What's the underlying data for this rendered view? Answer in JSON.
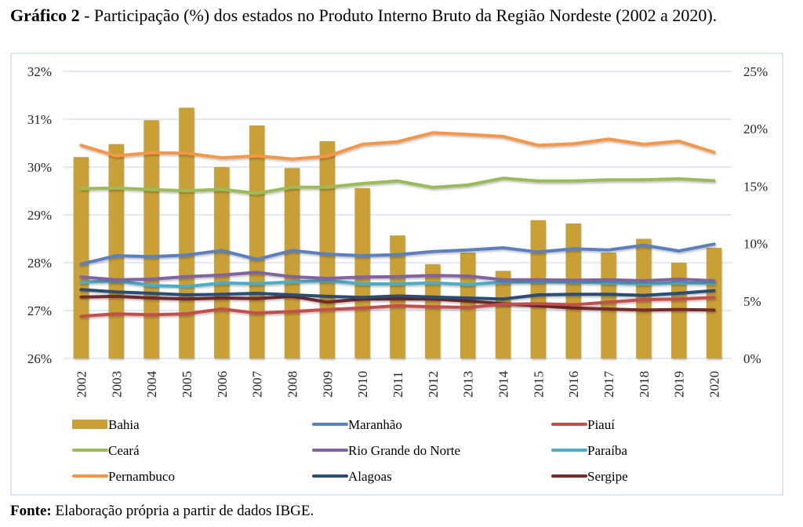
{
  "title": {
    "label": "Gráfico  2",
    "text": " - Participação (%) dos estados no Produto Interno Bruto da Região Nordeste (2002 a 2020)."
  },
  "source": {
    "label": "Fonte:",
    "text": " Elaboração própria a partir de dados IBGE."
  },
  "chart_data": {
    "type": "bar",
    "title": "Participação (%) dos estados no Produto Interno Bruto da Região Nordeste (2002 a 2020)",
    "xlabel": "",
    "ylabel": "",
    "categories": [
      "2002",
      "2003",
      "2004",
      "2005",
      "2006",
      "2007",
      "2008",
      "2009",
      "2010",
      "2011",
      "2012",
      "2013",
      "2014",
      "2015",
      "2016",
      "2017",
      "2018",
      "2019",
      "2020"
    ],
    "left_axis": {
      "ylim": [
        26,
        32
      ],
      "ticks": [
        "26%",
        "27%",
        "28%",
        "29%",
        "30%",
        "31%",
        "32%"
      ]
    },
    "right_axis": {
      "ylim": [
        0,
        25
      ],
      "ticks": [
        "0%",
        "5%",
        "10%",
        "15%",
        "20%",
        "25%"
      ]
    },
    "grid": true,
    "legend_position": "bottom",
    "series": [
      {
        "name": "Bahia",
        "kind": "bar",
        "axis": "left",
        "color": "#c9a035",
        "values": [
          30.21,
          30.48,
          30.98,
          31.24,
          30.0,
          30.87,
          29.98,
          30.54,
          29.56,
          28.57,
          27.97,
          28.21,
          27.83,
          28.89,
          28.82,
          28.21,
          28.5,
          28.0,
          28.31
        ]
      },
      {
        "name": "Maranhão",
        "kind": "line",
        "axis": "right",
        "color": "#5b80bd",
        "values": [
          8.22,
          8.95,
          8.86,
          9.0,
          9.4,
          8.63,
          9.4,
          9.08,
          8.95,
          9.04,
          9.31,
          9.45,
          9.63,
          9.27,
          9.54,
          9.45,
          9.86,
          9.36,
          9.95
        ]
      },
      {
        "name": "Piauí",
        "kind": "line",
        "axis": "right",
        "color": "#c0504d",
        "values": [
          3.67,
          3.89,
          3.8,
          3.89,
          4.3,
          3.94,
          4.08,
          4.26,
          4.39,
          4.58,
          4.49,
          4.44,
          4.71,
          4.76,
          4.67,
          4.9,
          5.12,
          5.17,
          5.31
        ]
      },
      {
        "name": "Ceará",
        "kind": "line",
        "axis": "right",
        "color": "#9bbb59",
        "values": [
          14.78,
          14.84,
          14.7,
          14.6,
          14.73,
          14.37,
          14.91,
          14.91,
          15.23,
          15.46,
          14.89,
          15.1,
          15.69,
          15.46,
          15.46,
          15.55,
          15.55,
          15.64,
          15.48
        ]
      },
      {
        "name": "Rio Grande do Norte",
        "kind": "line",
        "axis": "right",
        "color": "#8064a2",
        "values": [
          7.08,
          6.85,
          6.9,
          7.12,
          7.26,
          7.49,
          7.12,
          6.97,
          7.08,
          7.12,
          7.22,
          7.17,
          6.85,
          6.85,
          6.81,
          6.85,
          6.76,
          6.9,
          6.76
        ]
      },
      {
        "name": "Paraíba",
        "kind": "line",
        "axis": "right",
        "color": "#4bacc6",
        "values": [
          6.63,
          6.74,
          6.35,
          6.26,
          6.58,
          6.51,
          6.67,
          6.76,
          6.49,
          6.49,
          6.58,
          6.44,
          6.63,
          6.67,
          6.63,
          6.58,
          6.49,
          6.58,
          6.54
        ]
      },
      {
        "name": "Pernambuco",
        "kind": "line",
        "axis": "right",
        "color": "#f79646",
        "values": [
          18.56,
          17.64,
          17.92,
          17.87,
          17.47,
          17.64,
          17.37,
          17.6,
          18.65,
          18.87,
          19.65,
          19.51,
          19.33,
          18.56,
          18.69,
          19.1,
          18.65,
          18.92,
          17.96
        ]
      },
      {
        "name": "Alagoas",
        "kind": "line",
        "axis": "right",
        "color": "#2c4d75",
        "values": [
          5.99,
          5.79,
          5.67,
          5.53,
          5.58,
          5.67,
          5.53,
          5.4,
          5.31,
          5.44,
          5.35,
          5.26,
          5.17,
          5.53,
          5.58,
          5.58,
          5.49,
          5.67,
          5.9
        ]
      },
      {
        "name": "Sergipe",
        "kind": "line",
        "axis": "right",
        "color": "#772c2a",
        "values": [
          5.35,
          5.4,
          5.26,
          5.17,
          5.26,
          5.21,
          5.4,
          4.9,
          5.17,
          5.17,
          5.17,
          4.99,
          4.76,
          4.58,
          4.39,
          4.3,
          4.21,
          4.26,
          4.21
        ]
      }
    ]
  }
}
